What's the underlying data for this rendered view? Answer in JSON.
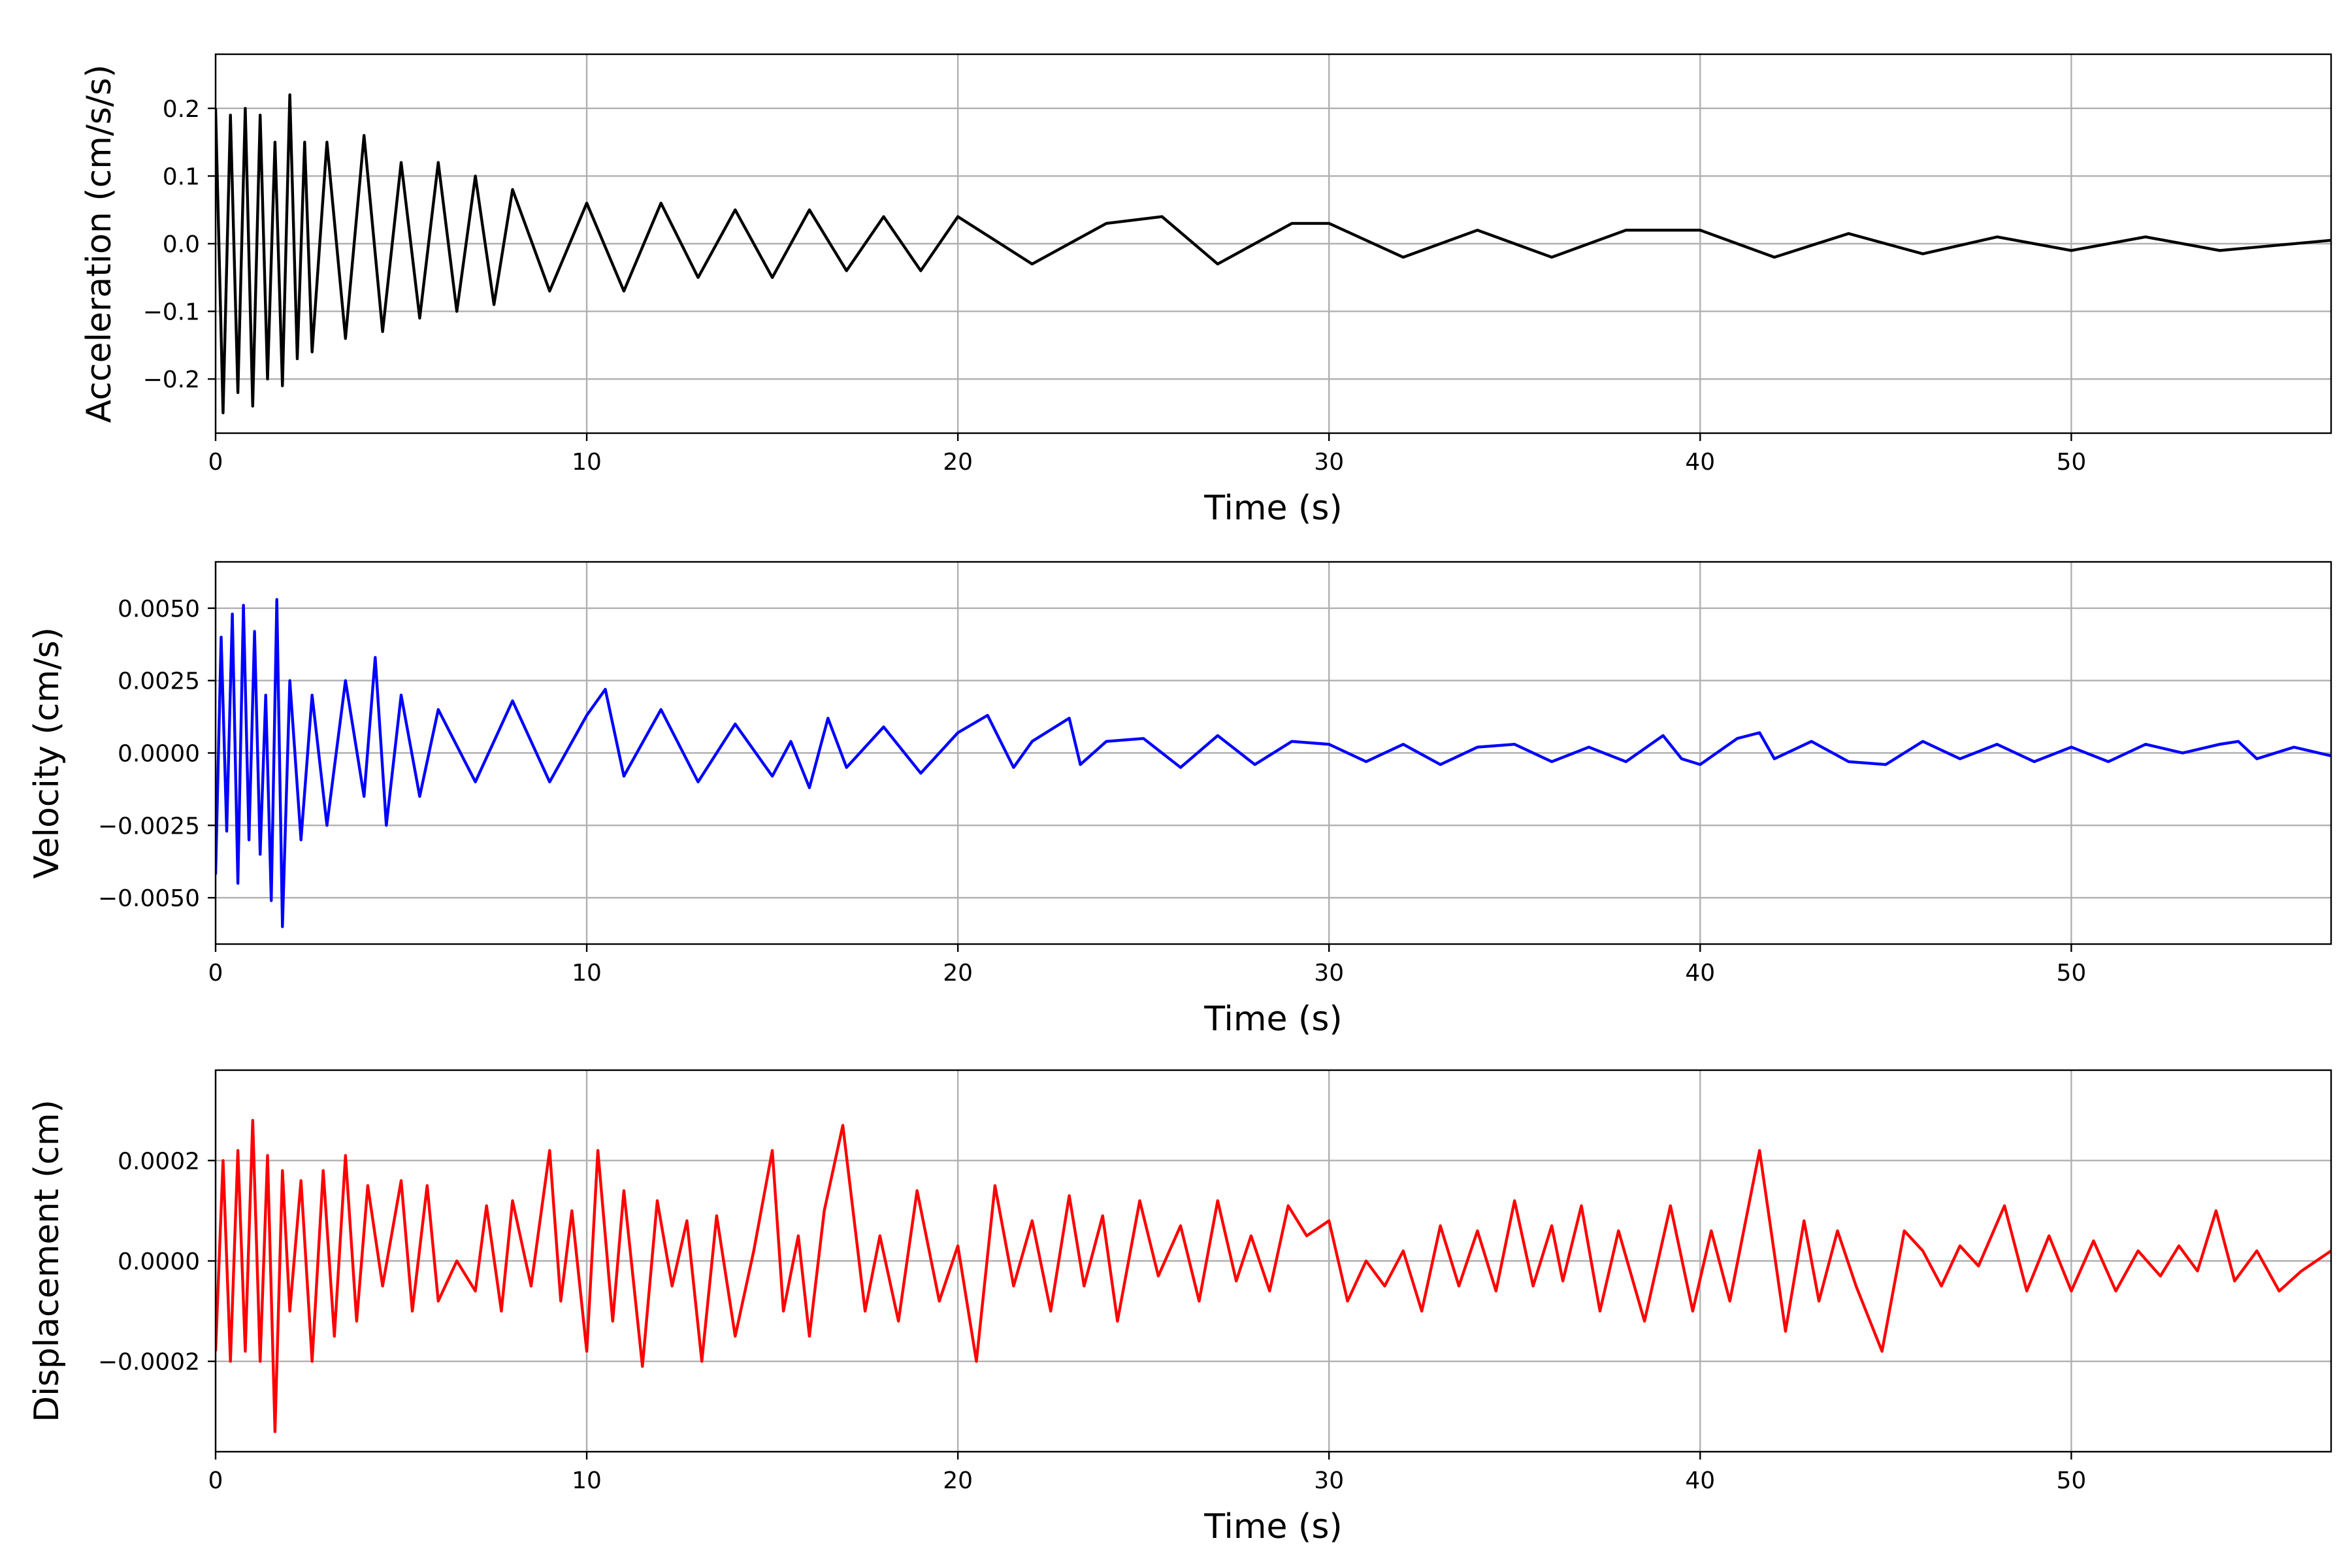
{
  "chart_data": [
    {
      "type": "line",
      "xlabel": "Time (s)",
      "ylabel": "Acceleration (cm/s/s)",
      "xlim": [
        0,
        57
      ],
      "ylim": [
        -0.28,
        0.28
      ],
      "xticks": [
        0,
        10,
        20,
        30,
        40,
        50
      ],
      "xtick_labels": [
        "0",
        "10",
        "20",
        "30",
        "40",
        "50"
      ],
      "yticks": [
        -0.2,
        -0.1,
        0.0,
        0.1,
        0.2
      ],
      "ytick_labels": [
        "−0.2",
        "−0.1",
        "0.0",
        "0.1",
        "0.2"
      ],
      "grid": true,
      "color": "#000000",
      "series": [
        {
          "x": [
            0,
            0.2,
            0.4,
            0.6,
            0.8,
            1,
            1.2,
            1.4,
            1.6,
            1.8,
            2,
            2.2,
            2.4,
            2.6,
            3,
            3.5,
            4,
            4.5,
            5,
            5.5,
            6,
            6.5,
            7,
            7.5,
            8,
            9,
            10,
            11,
            12,
            13,
            14,
            15,
            16,
            17,
            18,
            19,
            20,
            22,
            24,
            25.5,
            27,
            29,
            30,
            32,
            34,
            36,
            38,
            40,
            42,
            44,
            46,
            48,
            50,
            52,
            54,
            57
          ],
          "y": [
            0.2,
            -0.25,
            0.19,
            -0.22,
            0.2,
            -0.24,
            0.19,
            -0.2,
            0.15,
            -0.21,
            0.22,
            -0.17,
            0.15,
            -0.16,
            0.15,
            -0.14,
            0.16,
            -0.13,
            0.12,
            -0.11,
            0.12,
            -0.1,
            0.1,
            -0.09,
            0.08,
            -0.07,
            0.06,
            -0.07,
            0.06,
            -0.05,
            0.05,
            -0.05,
            0.05,
            -0.04,
            0.04,
            -0.04,
            0.04,
            -0.03,
            0.03,
            0.04,
            -0.03,
            0.03,
            0.03,
            -0.02,
            0.02,
            -0.02,
            0.02,
            0.02,
            -0.02,
            0.015,
            -0.015,
            0.01,
            -0.01,
            0.01,
            -0.01,
            0.005
          ]
        }
      ]
    },
    {
      "type": "line",
      "xlabel": "Time (s)",
      "ylabel": "Velocity (cm/s)",
      "xlim": [
        0,
        57
      ],
      "ylim": [
        -0.0066,
        0.0066
      ],
      "xticks": [
        0,
        10,
        20,
        30,
        40,
        50
      ],
      "xtick_labels": [
        "0",
        "10",
        "20",
        "30",
        "40",
        "50"
      ],
      "yticks": [
        -0.005,
        -0.0025,
        0.0,
        0.0025,
        0.005
      ],
      "ytick_labels": [
        "−0.0050",
        "−0.0025",
        "0.0000",
        "0.0025",
        "0.0050"
      ],
      "grid": true,
      "color": "#0000ff",
      "series": [
        {
          "x": [
            0,
            0.15,
            0.3,
            0.45,
            0.6,
            0.75,
            0.9,
            1.05,
            1.2,
            1.35,
            1.5,
            1.65,
            1.8,
            2,
            2.3,
            2.6,
            3,
            3.5,
            4,
            4.3,
            4.6,
            5,
            5.5,
            6,
            7,
            8,
            9,
            10,
            10.5,
            11,
            12,
            13,
            14,
            15,
            15.5,
            16,
            16.5,
            17,
            18,
            19,
            20,
            20.8,
            21.5,
            22,
            23,
            23.3,
            24,
            25,
            26,
            27,
            28,
            29,
            30,
            31,
            32,
            33,
            34,
            35,
            36,
            37,
            38,
            39,
            39.5,
            40,
            41,
            41.6,
            42,
            43,
            44,
            45,
            46,
            47,
            48,
            49,
            50,
            51,
            52,
            53,
            54,
            54.5,
            55,
            56,
            57
          ],
          "y": [
            -0.0042,
            0.004,
            -0.0027,
            0.0048,
            -0.0045,
            0.0051,
            -0.003,
            0.0042,
            -0.0035,
            0.002,
            -0.0051,
            0.0053,
            -0.006,
            0.0025,
            -0.003,
            0.002,
            -0.0025,
            0.0025,
            -0.0015,
            0.0033,
            -0.0025,
            0.002,
            -0.0015,
            0.0015,
            -0.001,
            0.0018,
            -0.001,
            0.0013,
            0.0022,
            -0.0008,
            0.0015,
            -0.001,
            0.001,
            -0.0008,
            0.0004,
            -0.0012,
            0.0012,
            -0.0005,
            0.0009,
            -0.0007,
            0.0007,
            0.0013,
            -0.0005,
            0.0004,
            0.0012,
            -0.0004,
            0.0004,
            0.0005,
            -0.0005,
            0.0006,
            -0.0004,
            0.0004,
            0.0003,
            -0.0003,
            0.0003,
            -0.0004,
            0.0002,
            0.0003,
            -0.0003,
            0.0002,
            -0.0003,
            0.0006,
            -0.0002,
            -0.0004,
            0.0005,
            0.0007,
            -0.0002,
            0.0004,
            -0.0003,
            -0.0004,
            0.0004,
            -0.0002,
            0.0003,
            -0.0003,
            0.0002,
            -0.0003,
            0.0003,
            0,
            0.0003,
            0.0004,
            -0.0002,
            0.0002,
            -0.0001
          ]
        }
      ]
    },
    {
      "type": "line",
      "xlabel": "Time (s)",
      "ylabel": "Displacement (cm)",
      "xlim": [
        0,
        57
      ],
      "ylim": [
        -0.00038,
        0.00038
      ],
      "xticks": [
        0,
        10,
        20,
        30,
        40,
        50
      ],
      "xtick_labels": [
        "0",
        "10",
        "20",
        "30",
        "40",
        "50"
      ],
      "yticks": [
        -0.0002,
        0.0,
        0.0002
      ],
      "ytick_labels": [
        "−0.0002",
        "0.0000",
        "0.0002"
      ],
      "grid": true,
      "color": "#ff0000",
      "series": [
        {
          "x": [
            0,
            0.2,
            0.4,
            0.6,
            0.8,
            1,
            1.2,
            1.4,
            1.6,
            1.8,
            2,
            2.3,
            2.6,
            2.9,
            3.2,
            3.5,
            3.8,
            4.1,
            4.5,
            5,
            5.3,
            5.7,
            6,
            6.5,
            7,
            7.3,
            7.7,
            8,
            8.5,
            9,
            9.3,
            9.6,
            10,
            10.3,
            10.7,
            11,
            11.5,
            11.9,
            12.3,
            12.7,
            13.1,
            13.5,
            14,
            14.5,
            15,
            15.3,
            15.7,
            16,
            16.4,
            16.9,
            17.5,
            17.9,
            18.4,
            18.9,
            19.5,
            20,
            20.5,
            21,
            21.5,
            22,
            22.5,
            23,
            23.4,
            23.9,
            24.3,
            24.9,
            25.4,
            26,
            26.5,
            27,
            27.5,
            27.9,
            28.4,
            28.9,
            29.4,
            30,
            30.5,
            31,
            31.5,
            32,
            32.5,
            33,
            33.5,
            34,
            34.5,
            35,
            35.5,
            36,
            36.3,
            36.8,
            37.3,
            37.8,
            38.5,
            39.2,
            39.8,
            40.3,
            40.8,
            41.6,
            42.3,
            42.8,
            43.2,
            43.7,
            44.2,
            44.9,
            45.5,
            46,
            46.5,
            47,
            47.5,
            48.2,
            48.8,
            49.4,
            50,
            50.6,
            51.2,
            51.8,
            52.4,
            52.9,
            53.4,
            53.9,
            54.4,
            55,
            55.6,
            56.2,
            57
          ],
          "y": [
            -0.00018,
            0.0002,
            -0.0002,
            0.00022,
            -0.00018,
            0.00028,
            -0.0002,
            0.00021,
            -0.00034,
            0.00018,
            -0.0001,
            0.00016,
            -0.0002,
            0.00018,
            -0.00015,
            0.00021,
            -0.00012,
            0.00015,
            -5e-05,
            0.00016,
            -0.0001,
            0.00015,
            -8e-05,
            0,
            -6e-05,
            0.00011,
            -0.0001,
            0.00012,
            -5e-05,
            0.00022,
            -8e-05,
            0.0001,
            -0.00018,
            0.00022,
            -0.00012,
            0.00014,
            -0.00021,
            0.00012,
            -5e-05,
            8e-05,
            -0.0002,
            9e-05,
            -0.00015,
            2e-05,
            0.00022,
            -0.0001,
            5e-05,
            -0.00015,
            0.0001,
            0.00027,
            -0.0001,
            5e-05,
            -0.00012,
            0.00014,
            -8e-05,
            3e-05,
            -0.0002,
            0.00015,
            -5e-05,
            8e-05,
            -0.0001,
            0.00013,
            -5e-05,
            9e-05,
            -0.00012,
            0.00012,
            -3e-05,
            7e-05,
            -8e-05,
            0.00012,
            -4e-05,
            5e-05,
            -6e-05,
            0.00011,
            5e-05,
            8e-05,
            -8e-05,
            0,
            -5e-05,
            2e-05,
            -0.0001,
            7e-05,
            -5e-05,
            6e-05,
            -6e-05,
            0.00012,
            -5e-05,
            7e-05,
            -4e-05,
            0.00011,
            -0.0001,
            6e-05,
            -0.00012,
            0.00011,
            -0.0001,
            6e-05,
            -8e-05,
            0.00022,
            -0.00014,
            8e-05,
            -8e-05,
            6e-05,
            -5e-05,
            -0.00018,
            6e-05,
            2e-05,
            -5e-05,
            3e-05,
            -1e-05,
            0.00011,
            -6e-05,
            5e-05,
            -6e-05,
            4e-05,
            -6e-05,
            2e-05,
            -3e-05,
            3e-05,
            -2e-05,
            0.0001,
            -4e-05,
            2e-05,
            -6e-05,
            -2e-05,
            2e-05
          ]
        }
      ]
    }
  ]
}
